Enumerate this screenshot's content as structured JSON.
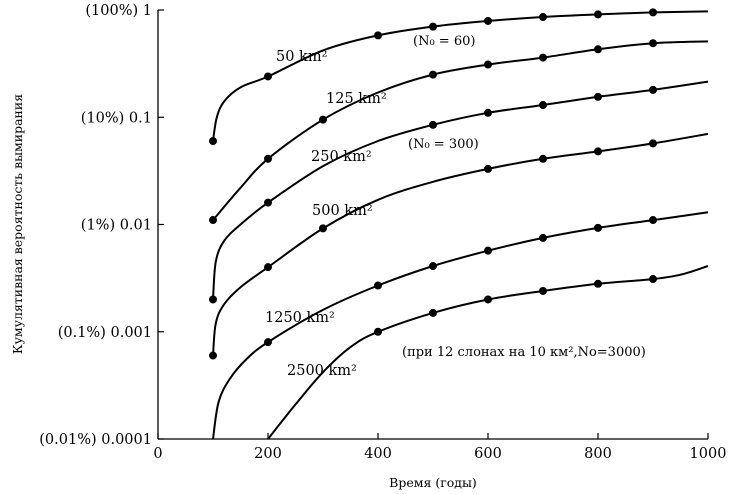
{
  "chart_data": {
    "type": "line",
    "xlabel": "Время (годы)",
    "ylabel": "Кумулятивная вероятность вымирания",
    "xlim": [
      0,
      1000
    ],
    "ylim": [
      0.0001,
      1
    ],
    "yscale": "log",
    "grid": false,
    "x_ticks": [
      0,
      200,
      400,
      600,
      800,
      1000
    ],
    "x_tick_labels": [
      "0",
      "200",
      "400",
      "600",
      "800",
      "1000"
    ],
    "y_ticks": [
      1,
      0.1,
      0.01,
      0.001,
      0.0001
    ],
    "y_tick_labels": [
      "(100%) 1",
      "(10%) 0.1",
      "(1%) 0.01",
      "(0.1%) 0.001",
      "(0.01%) 0.0001"
    ],
    "series": [
      {
        "name": "50 km²",
        "curve_x": [
          100,
          107,
          120,
          150,
          200,
          300,
          400,
          500,
          600,
          700,
          800,
          900,
          1000
        ],
        "curve_y": [
          0.06,
          0.1,
          0.14,
          0.19,
          0.24,
          0.42,
          0.58,
          0.7,
          0.79,
          0.86,
          0.91,
          0.95,
          0.97
        ],
        "markers_x": [
          100,
          200,
          400,
          500,
          600,
          700,
          800,
          900
        ],
        "markers_y": [
          0.06,
          0.24,
          0.58,
          0.7,
          0.79,
          0.86,
          0.91,
          0.95
        ]
      },
      {
        "name": "125 km²",
        "curve_x": [
          100,
          150,
          200,
          300,
          400,
          500,
          600,
          700,
          800,
          900,
          1000
        ],
        "curve_y": [
          0.011,
          0.022,
          0.041,
          0.095,
          0.17,
          0.25,
          0.31,
          0.36,
          0.43,
          0.49,
          0.51
        ],
        "markers_x": [
          100,
          200,
          300,
          500,
          600,
          700,
          800,
          900
        ],
        "markers_y": [
          0.011,
          0.041,
          0.095,
          0.25,
          0.31,
          0.36,
          0.43,
          0.49
        ]
      },
      {
        "name": "250 km²",
        "curve_x": [
          100,
          105,
          120,
          150,
          200,
          300,
          400,
          500,
          600,
          700,
          800,
          900,
          1000
        ],
        "curve_y": [
          0.002,
          0.0045,
          0.007,
          0.01,
          0.016,
          0.035,
          0.06,
          0.085,
          0.11,
          0.13,
          0.155,
          0.18,
          0.215
        ],
        "markers_x": [
          100,
          200,
          500,
          600,
          700,
          800,
          900
        ],
        "markers_y": [
          0.002,
          0.016,
          0.085,
          0.11,
          0.13,
          0.155,
          0.18
        ]
      },
      {
        "name": "500 km²",
        "curve_x": [
          100,
          105,
          120,
          150,
          200,
          300,
          400,
          500,
          600,
          700,
          800,
          900,
          1000
        ],
        "curve_y": [
          0.0006,
          0.0012,
          0.0018,
          0.0026,
          0.004,
          0.0092,
          0.017,
          0.025,
          0.033,
          0.041,
          0.048,
          0.057,
          0.07
        ],
        "markers_x": [
          100,
          200,
          300,
          600,
          700,
          800,
          900
        ],
        "markers_y": [
          0.0006,
          0.004,
          0.0092,
          0.033,
          0.041,
          0.048,
          0.057
        ]
      },
      {
        "name": "1250 km²",
        "curve_x": [
          100,
          110,
          130,
          160,
          200,
          300,
          400,
          500,
          600,
          700,
          800,
          900,
          1000
        ],
        "curve_y": [
          0.0001,
          0.00022,
          0.00036,
          0.00055,
          0.0008,
          0.0016,
          0.0027,
          0.0041,
          0.0057,
          0.0075,
          0.0093,
          0.011,
          0.013
        ],
        "markers_x": [
          200,
          400,
          500,
          600,
          700,
          800,
          900
        ],
        "markers_y": [
          0.0008,
          0.0027,
          0.0041,
          0.0057,
          0.0075,
          0.0093,
          0.011
        ]
      },
      {
        "name": "2500 km²",
        "curve_x": [
          200,
          250,
          300,
          350,
          400,
          500,
          600,
          700,
          800,
          900,
          950,
          1000
        ],
        "curve_y": [
          0.0001,
          0.00021,
          0.00042,
          0.00072,
          0.001,
          0.0015,
          0.002,
          0.0024,
          0.0028,
          0.0031,
          0.0034,
          0.0041
        ],
        "markers_x": [
          400,
          500,
          600,
          700,
          800,
          900
        ],
        "markers_y": [
          0.001,
          0.0015,
          0.002,
          0.0024,
          0.0028,
          0.0031
        ]
      }
    ],
    "annotations": [
      "(N₀ = 60)",
      "(N₀ = 300)",
      "(при 12 слонах на 10 км²,No=3000)"
    ]
  }
}
